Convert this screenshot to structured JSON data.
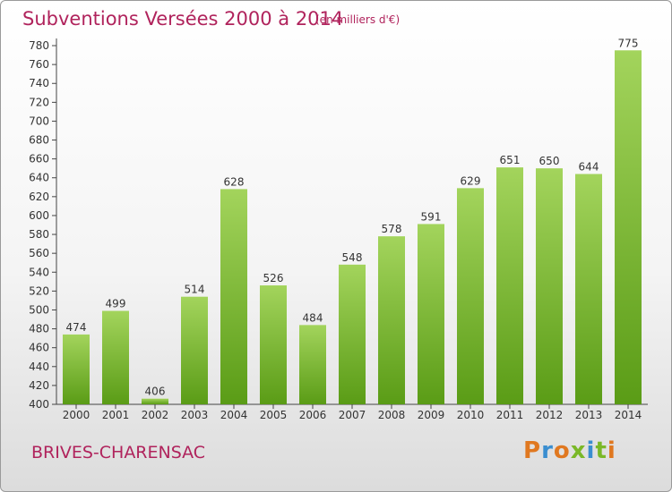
{
  "header": {
    "title": "Subventions Versées 2000 à 2014",
    "subtitle": "(en milliers d'€)"
  },
  "footer": {
    "commune": "BRIVES-CHARENSAC",
    "logo": "Proxiti"
  },
  "colors": {
    "accent": "#b0235c",
    "bar_top": "#a3d45c",
    "bar_bottom": "#5a9c16",
    "logo": [
      "#e07820",
      "#3a8ed0",
      "#e07820",
      "#7ab828",
      "#3a8ed0",
      "#7ab828",
      "#e07820"
    ]
  },
  "chart_data": {
    "type": "bar",
    "title": "Subventions Versées 2000 à 2014",
    "subtitle": "(en milliers d'€)",
    "categories": [
      "2000",
      "2001",
      "2002",
      "2003",
      "2004",
      "2005",
      "2006",
      "2007",
      "2008",
      "2009",
      "2010",
      "2011",
      "2012",
      "2013",
      "2014"
    ],
    "values": [
      474,
      499,
      406,
      514,
      628,
      526,
      484,
      548,
      578,
      591,
      629,
      651,
      650,
      644,
      775
    ],
    "ylim": [
      400,
      780
    ],
    "ytick_step": 20,
    "grid": false,
    "data_labels": true
  }
}
